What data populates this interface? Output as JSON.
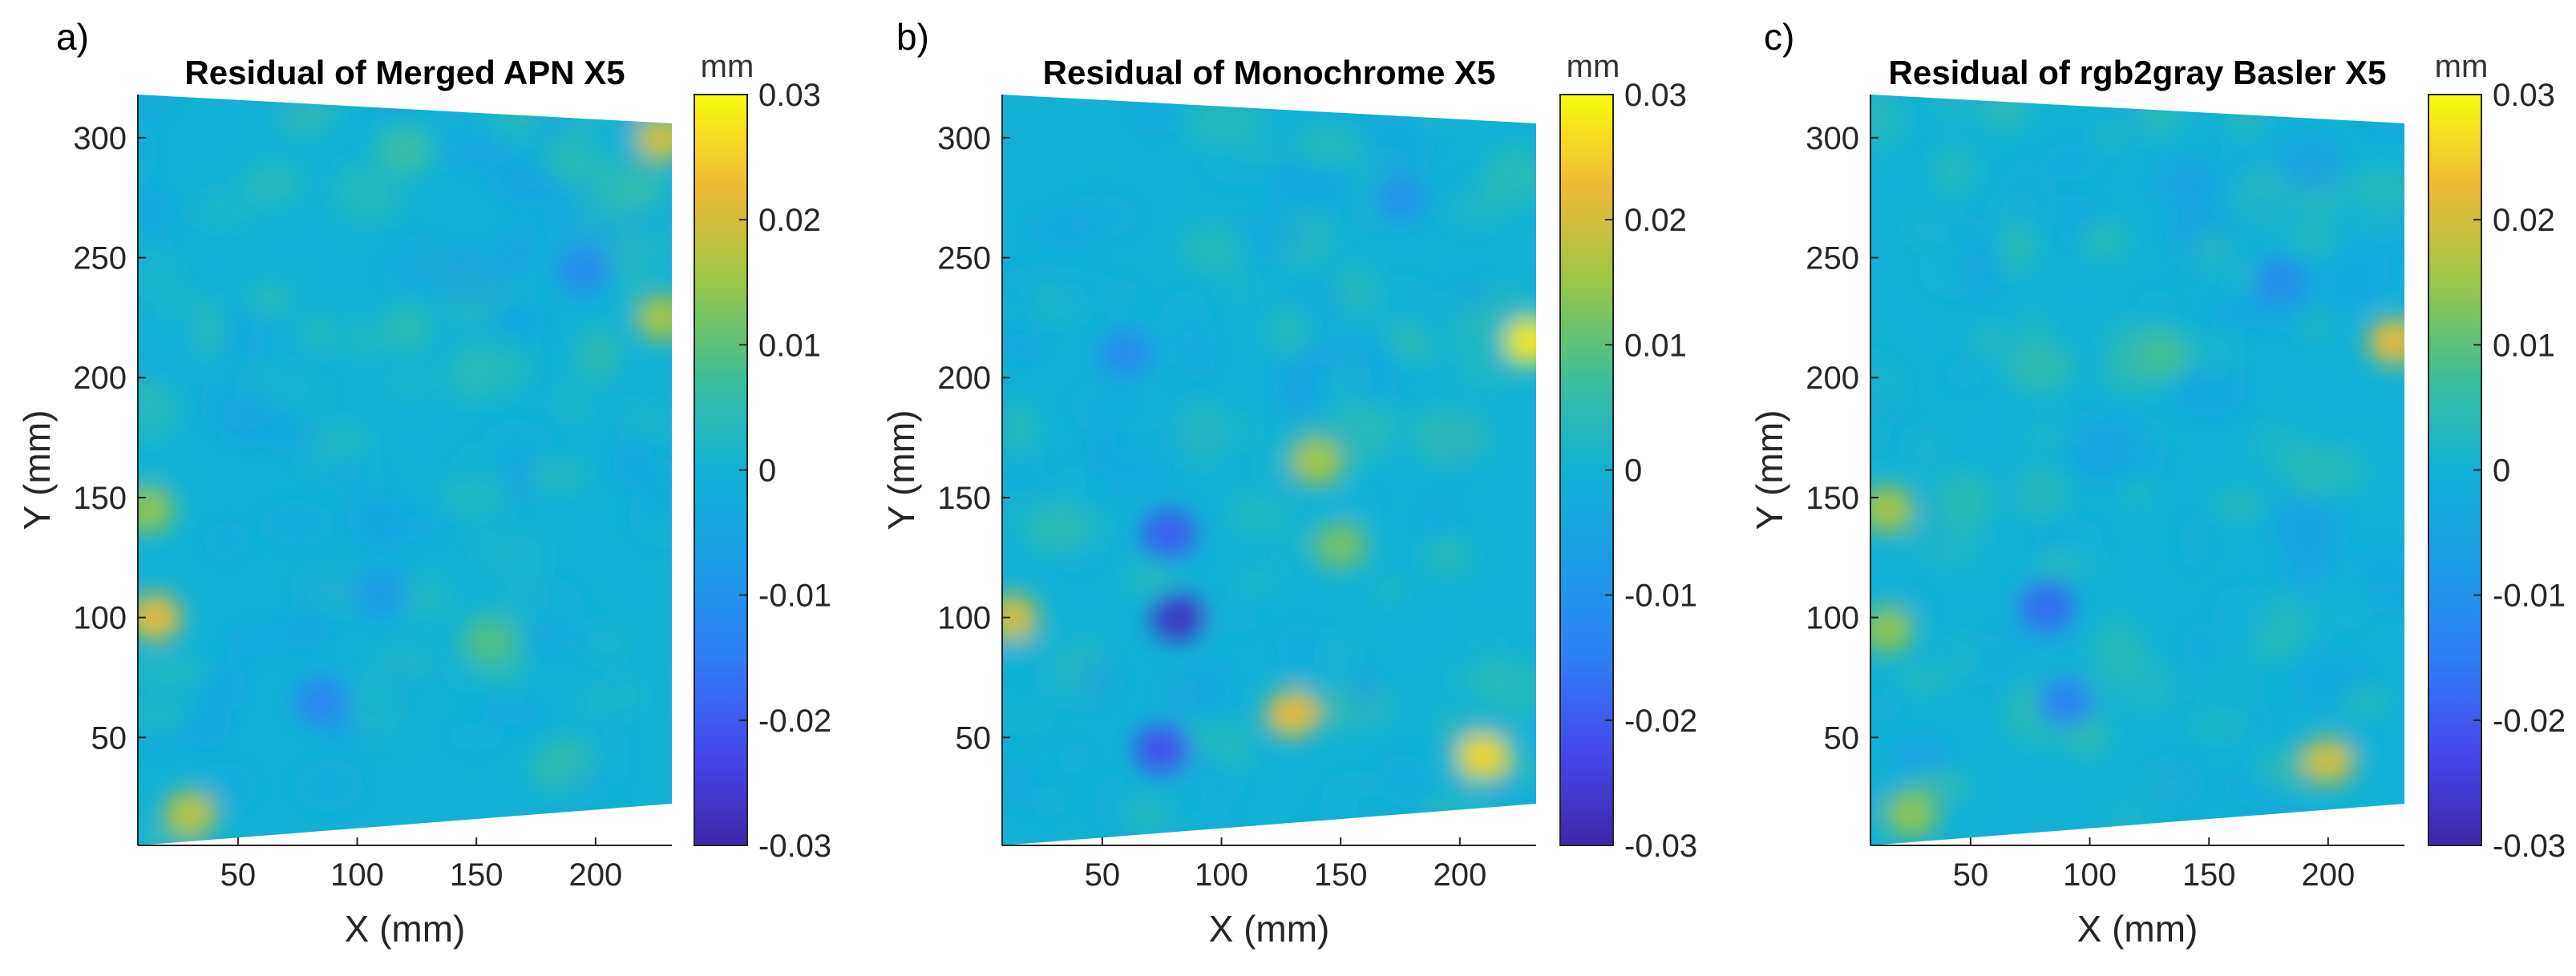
{
  "figure": {
    "panels": [
      {
        "label": "a)",
        "title": "Residual of Merged APN X5"
      },
      {
        "label": "b)",
        "title": "Residual of Monochrome X5"
      },
      {
        "label": "c)",
        "title": "Residual of rgb2gray Basler X5"
      }
    ],
    "colorbar_unit": "mm",
    "colors": {
      "parula_low": "#3e26a8",
      "parula_mid": "#1fb6c0",
      "parula_high": "#f9fb0e"
    }
  },
  "chart_data": [
    {
      "type": "heatmap",
      "title": "Residual of Merged APN X5",
      "panel_label": "a)",
      "xlabel": "X (mm)",
      "ylabel": "Y (mm)",
      "xlim": [
        8,
        232
      ],
      "ylim": [
        5,
        318
      ],
      "xticks": [
        50,
        100,
        150,
        200
      ],
      "yticks": [
        50,
        100,
        150,
        200,
        250,
        300
      ],
      "colorbar": {
        "label": "mm",
        "range": [
          -0.03,
          0.03
        ],
        "ticks": [
          "0.03",
          "0.02",
          "0.01",
          "0",
          "-0.01",
          "-0.02",
          "-0.03"
        ]
      },
      "background": 0.0,
      "features": [
        {
          "x": 15,
          "y": 100,
          "value": 0.022
        },
        {
          "x": 12,
          "y": 145,
          "value": 0.014
        },
        {
          "x": 30,
          "y": 18,
          "value": 0.018
        },
        {
          "x": 228,
          "y": 300,
          "value": 0.02
        },
        {
          "x": 228,
          "y": 225,
          "value": 0.016
        },
        {
          "x": 85,
          "y": 65,
          "value": -0.013
        },
        {
          "x": 195,
          "y": 245,
          "value": -0.012
        },
        {
          "x": 155,
          "y": 90,
          "value": 0.009
        },
        {
          "x": 120,
          "y": 295,
          "value": 0.007
        },
        {
          "x": 110,
          "y": 110,
          "value": -0.008
        }
      ]
    },
    {
      "type": "heatmap",
      "title": "Residual of Monochrome X5",
      "panel_label": "b)",
      "xlabel": "X (mm)",
      "ylabel": "Y (mm)",
      "xlim": [
        8,
        232
      ],
      "ylim": [
        5,
        318
      ],
      "xticks": [
        50,
        100,
        150,
        200
      ],
      "yticks": [
        50,
        100,
        150,
        200,
        250,
        300
      ],
      "colorbar": {
        "label": "mm",
        "range": [
          -0.03,
          0.03
        ],
        "ticks": [
          "0.03",
          "0.02",
          "0.01",
          "0",
          "-0.01",
          "-0.02",
          "-0.03"
        ]
      },
      "background": 0.0,
      "features": [
        {
          "x": 82,
          "y": 100,
          "value": -0.027
        },
        {
          "x": 75,
          "y": 45,
          "value": -0.022
        },
        {
          "x": 78,
          "y": 135,
          "value": -0.02
        },
        {
          "x": 210,
          "y": 42,
          "value": 0.026
        },
        {
          "x": 230,
          "y": 215,
          "value": 0.028
        },
        {
          "x": 12,
          "y": 100,
          "value": 0.02
        },
        {
          "x": 130,
          "y": 60,
          "value": 0.022
        },
        {
          "x": 140,
          "y": 165,
          "value": 0.016
        },
        {
          "x": 150,
          "y": 130,
          "value": 0.012
        },
        {
          "x": 60,
          "y": 210,
          "value": -0.012
        },
        {
          "x": 175,
          "y": 275,
          "value": -0.01
        }
      ]
    },
    {
      "type": "heatmap",
      "title": "Residual of rgb2gray Basler X5",
      "panel_label": "c)",
      "xlabel": "X (mm)",
      "ylabel": "Y (mm)",
      "xlim": [
        8,
        232
      ],
      "ylim": [
        5,
        318
      ],
      "xticks": [
        50,
        100,
        150,
        200
      ],
      "yticks": [
        50,
        100,
        150,
        200,
        250,
        300
      ],
      "colorbar": {
        "label": "mm",
        "range": [
          -0.03,
          0.03
        ],
        "ticks": [
          "0.03",
          "0.02",
          "0.01",
          "0",
          "-0.01",
          "-0.02",
          "-0.03"
        ]
      },
      "background": 0.0,
      "features": [
        {
          "x": 82,
          "y": 105,
          "value": -0.018
        },
        {
          "x": 90,
          "y": 65,
          "value": -0.014
        },
        {
          "x": 200,
          "y": 40,
          "value": 0.02
        },
        {
          "x": 228,
          "y": 215,
          "value": 0.022
        },
        {
          "x": 15,
          "y": 145,
          "value": 0.016
        },
        {
          "x": 15,
          "y": 95,
          "value": 0.014
        },
        {
          "x": 180,
          "y": 240,
          "value": -0.012
        },
        {
          "x": 130,
          "y": 210,
          "value": 0.008
        },
        {
          "x": 25,
          "y": 18,
          "value": 0.014
        }
      ]
    }
  ]
}
